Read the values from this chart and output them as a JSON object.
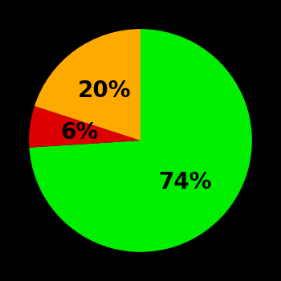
{
  "slices": [
    74,
    6,
    20
  ],
  "colors": [
    "#00ee00",
    "#dd0000",
    "#ffaa00"
  ],
  "labels": [
    "74%",
    "6%",
    "20%"
  ],
  "label_radii": [
    0.55,
    0.55,
    0.55
  ],
  "background_color": "#000000",
  "startangle": 90,
  "figsize": [
    3.5,
    3.5
  ],
  "dpi": 100,
  "label_fontsize": 20,
  "label_fontweight": "bold"
}
